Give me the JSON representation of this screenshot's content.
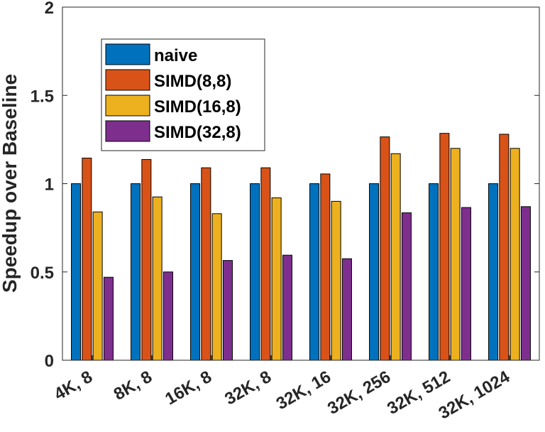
{
  "chart_data": {
    "type": "bar",
    "title": "",
    "xlabel": "",
    "ylabel": "Speedup over Baseline",
    "ylim": [
      0,
      2
    ],
    "yticks": [
      0,
      0.5,
      1,
      1.5,
      2
    ],
    "ytick_labels": [
      "0",
      "0.5",
      "1",
      "1.5",
      "2"
    ],
    "grid": false,
    "legend_position": "top-left",
    "categories": [
      "4K, 8",
      "8K, 8",
      "16K, 8",
      "32K, 8",
      "32K, 16",
      "32K, 256",
      "32K, 512",
      "32K, 1024"
    ],
    "series": [
      {
        "name": "naive",
        "color": "#0072BD",
        "values": [
          1.0,
          1.0,
          1.0,
          1.0,
          1.0,
          1.0,
          1.0,
          1.0
        ]
      },
      {
        "name": "SIMD(8,8)",
        "color": "#D95319",
        "values": [
          1.145,
          1.137,
          1.09,
          1.09,
          1.055,
          1.265,
          1.285,
          1.28
        ]
      },
      {
        "name": "SIMD(16,8)",
        "color": "#EDB120",
        "values": [
          0.84,
          0.925,
          0.83,
          0.92,
          0.9,
          1.17,
          1.2,
          1.2
        ]
      },
      {
        "name": "SIMD(32,8)",
        "color": "#7E2F8E",
        "values": [
          0.47,
          0.5,
          0.565,
          0.595,
          0.575,
          0.835,
          0.865,
          0.87
        ]
      }
    ]
  }
}
